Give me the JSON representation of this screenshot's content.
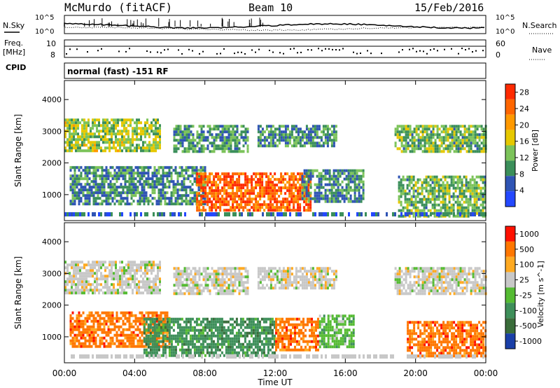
{
  "header": {
    "station": "McMurdo (fitACF)",
    "beam": "Beam 10",
    "date": "15/Feb/2016"
  },
  "strip_labels": {
    "nsky": "N.Sky",
    "nsearch": "N.Search",
    "freq_line1": "Freq.",
    "freq_line2": "[MHz]",
    "nave": "Nave",
    "cpid": "CPID",
    "cpid_value": "normal (fast) -151 RF",
    "noise_ticks": [
      "10^5",
      "10^0"
    ],
    "freq_ticks": [
      "10",
      "8"
    ],
    "nave_ticks": [
      "60",
      "0"
    ]
  },
  "colors": {
    "power_bar": [
      "#2448ff",
      "#2f54b4",
      "#3b8f5a",
      "#7cc35a",
      "#e6c800",
      "#ff9900",
      "#ff6600",
      "#ff2a00"
    ],
    "velocity_bar": [
      "#1a3fa8",
      "#3a6c3a",
      "#3e8f5a",
      "#55bb33",
      "#c8c8c8",
      "#ffaa22",
      "#ff7700",
      "#ff1100"
    ]
  },
  "chart_data": [
    {
      "type": "heatmap",
      "title": "Power",
      "xlabel": "Time UT",
      "ylabel": "Slant Range [km]",
      "x_ticks": [
        "00:00",
        "04:00",
        "08:00",
        "12:00",
        "16:00",
        "20:00",
        "00:00"
      ],
      "y_ticks": [
        "1000",
        "2000",
        "3000",
        "4000"
      ],
      "xlim_hours": [
        0,
        24
      ],
      "ylim_km": [
        180,
        4600
      ],
      "colorbar": {
        "label": "Power [dB]",
        "ticks": [
          "4",
          "8",
          "12",
          "16",
          "20",
          "24",
          "28"
        ],
        "range": [
          0,
          30
        ]
      },
      "echo_regions": [
        {
          "t0": 0.0,
          "t1": 5.5,
          "r0": 2400,
          "r1": 3400,
          "level": 14
        },
        {
          "t0": 6.2,
          "t1": 10.5,
          "r0": 2400,
          "r1": 3200,
          "level": 10
        },
        {
          "t0": 11.0,
          "t1": 15.5,
          "r0": 2500,
          "r1": 3200,
          "level": 9
        },
        {
          "t0": 18.8,
          "t1": 24.0,
          "r0": 2400,
          "r1": 3200,
          "level": 12
        },
        {
          "t0": 0.3,
          "t1": 8.0,
          "r0": 700,
          "r1": 1900,
          "level": 9
        },
        {
          "t0": 7.5,
          "t1": 14.0,
          "r0": 550,
          "r1": 1700,
          "level": 25
        },
        {
          "t0": 13.5,
          "t1": 17.0,
          "r0": 800,
          "r1": 1800,
          "level": 9
        },
        {
          "t0": 19.0,
          "t1": 24.0,
          "r0": 300,
          "r1": 1600,
          "level": 12
        }
      ]
    },
    {
      "type": "heatmap",
      "title": "Velocity",
      "xlabel": "Time UT",
      "ylabel": "Slant Range [km]",
      "x_ticks": [
        "00:00",
        "04:00",
        "08:00",
        "12:00",
        "16:00",
        "20:00",
        "00:00"
      ],
      "y_ticks": [
        "1000",
        "2000",
        "3000",
        "4000"
      ],
      "xlim_hours": [
        0,
        24
      ],
      "ylim_km": [
        180,
        4600
      ],
      "colorbar": {
        "label": "Velocity [m s^-1]",
        "ticks": [
          "1000",
          "500",
          "100",
          "25",
          "-25",
          "-100",
          "-500",
          "-1000"
        ]
      },
      "echo_regions": [
        {
          "t0": 0.0,
          "t1": 5.5,
          "r0": 2400,
          "r1": 3400,
          "cls": 4
        },
        {
          "t0": 6.2,
          "t1": 10.5,
          "r0": 2400,
          "r1": 3200,
          "cls": 4
        },
        {
          "t0": 11.0,
          "t1": 15.5,
          "r0": 2500,
          "r1": 3200,
          "cls": 4
        },
        {
          "t0": 18.8,
          "t1": 24.0,
          "r0": 2400,
          "r1": 3200,
          "cls": 4
        },
        {
          "t0": 0.3,
          "t1": 6.0,
          "r0": 700,
          "r1": 1800,
          "cls": 6
        },
        {
          "t0": 4.5,
          "t1": 12.0,
          "r0": 400,
          "r1": 1600,
          "cls": 2
        },
        {
          "t0": 12.0,
          "t1": 14.5,
          "r0": 600,
          "r1": 1600,
          "cls": 6
        },
        {
          "t0": 14.5,
          "t1": 16.5,
          "r0": 700,
          "r1": 1700,
          "cls": 3
        },
        {
          "t0": 19.5,
          "t1": 24.0,
          "r0": 400,
          "r1": 1500,
          "cls": 6
        }
      ]
    }
  ]
}
